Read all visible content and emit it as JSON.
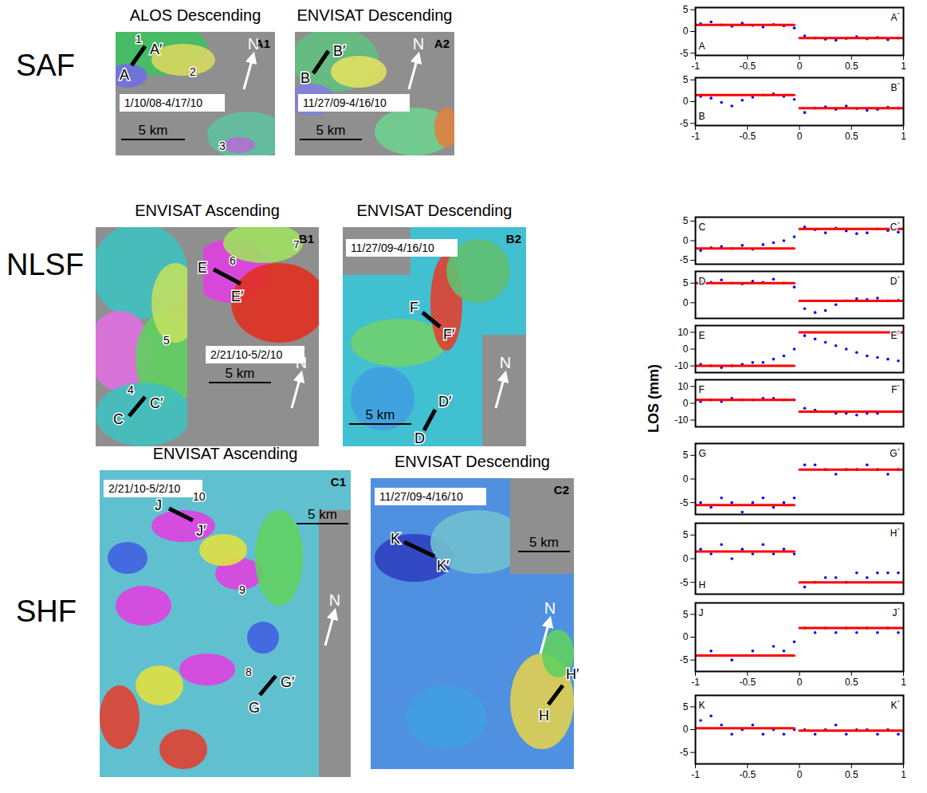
{
  "rows": [
    "SAF",
    "NLSF",
    "SHF"
  ],
  "y_label": "LOS (mm)",
  "maps": [
    {
      "id": "A1",
      "title": "ALOS Descending",
      "dates": "1/10/08-4/17/10",
      "scale": "5 km",
      "north": "N",
      "profiles": [
        [
          "A",
          "A′"
        ]
      ],
      "labels": [
        "1",
        "2",
        "3"
      ]
    },
    {
      "id": "A2",
      "title": "ENVISAT Descending",
      "dates": "11/27/09-4/16/10",
      "scale": "5 km",
      "north": "N",
      "profiles": [
        [
          "B",
          "B′"
        ]
      ]
    },
    {
      "id": "B1",
      "title": "ENVISAT Ascending",
      "dates": "2/21/10-5/2/10",
      "scale": "5 km",
      "north": "N",
      "profiles": [
        [
          "C",
          "C′"
        ],
        [
          "E",
          "E′"
        ]
      ],
      "labels": [
        "4",
        "5",
        "6",
        "7"
      ]
    },
    {
      "id": "B2",
      "title": "ENVISAT Descending",
      "dates": "11/27/09-4/16/10",
      "scale": "5 km",
      "north": "N",
      "profiles": [
        [
          "F",
          "F′"
        ],
        [
          "D",
          "D′"
        ]
      ]
    },
    {
      "id": "C1",
      "title": "ENVISAT Ascending",
      "dates": "2/21/10-5/2/10",
      "scale": "5 km",
      "north": "N",
      "profiles": [
        [
          "J",
          "J′"
        ],
        [
          "G",
          "G′"
        ]
      ],
      "labels": [
        "10",
        "9",
        "8"
      ]
    },
    {
      "id": "C2",
      "title": "ENVISAT Descending",
      "dates": "11/27/09-4/16/10",
      "scale": "5 km",
      "north": "N",
      "profiles": [
        [
          "K",
          "K′"
        ],
        [
          "H",
          "H′"
        ]
      ]
    }
  ],
  "chart_data": [
    {
      "type": "scatter",
      "annotations": [
        "A",
        "A`"
      ],
      "xlim": [
        -1,
        1
      ],
      "xticks": [
        -1,
        -0.5,
        0,
        0.5,
        1
      ],
      "ylim": [
        -5.5,
        5.5
      ],
      "yticks": [
        -5,
        0,
        5
      ],
      "series": [
        {
          "type": "scatter",
          "color": "blue",
          "x": [
            -0.95,
            -0.85,
            -0.75,
            -0.65,
            -0.55,
            -0.45,
            -0.35,
            -0.25,
            -0.15,
            -0.05,
            0.05,
            0.15,
            0.25,
            0.35,
            0.45,
            0.55,
            0.65,
            0.75,
            0.85,
            0.95
          ],
          "values": [
            1.8,
            2.2,
            1.5,
            1.2,
            1.9,
            1.4,
            1.0,
            1.6,
            1.3,
            0.8,
            -1.0,
            -1.5,
            -1.8,
            -2.0,
            -1.6,
            -1.2,
            -1.7,
            -1.4,
            -1.9,
            -1.5
          ]
        },
        {
          "type": "line",
          "color": "red",
          "x": [
            -1,
            -0.05,
            -0.02,
            0,
            1
          ],
          "values": [
            1.5,
            1.5,
            null,
            -1.5,
            -1.5
          ]
        }
      ]
    },
    {
      "type": "scatter",
      "annotations": [
        "B",
        "B`"
      ],
      "xlim": [
        -1,
        1
      ],
      "xticks": [
        -1,
        -0.5,
        0,
        0.5,
        1
      ],
      "ylim": [
        -5.5,
        5.5
      ],
      "yticks": [
        -5,
        0,
        5
      ],
      "series": [
        {
          "type": "scatter",
          "color": "blue",
          "x": [
            -0.95,
            -0.85,
            -0.75,
            -0.65,
            -0.55,
            -0.45,
            -0.35,
            -0.25,
            -0.15,
            -0.05,
            0.05,
            0.15,
            0.25,
            0.35,
            0.45,
            0.55,
            0.65,
            0.75,
            0.85,
            0.95
          ],
          "values": [
            1.2,
            0.8,
            -0.2,
            -1.0,
            0.3,
            1.0,
            1.5,
            1.8,
            1.2,
            0.5,
            -2.5,
            -1.5,
            -1.2,
            -1.8,
            -1.0,
            -1.6,
            -2.0,
            -1.8,
            -1.3,
            -1.5
          ]
        },
        {
          "type": "line",
          "color": "red",
          "x": [
            -1,
            -0.05,
            -0.02,
            0,
            1
          ],
          "values": [
            1.5,
            1.5,
            null,
            -1.5,
            -1.5
          ]
        }
      ]
    },
    {
      "type": "scatter",
      "annotations": [
        "C",
        "C`"
      ],
      "xlim": [
        -1,
        1
      ],
      "tick_labels": "y",
      "ylim": [
        -6,
        6
      ],
      "yticks": [
        -5,
        0,
        5
      ],
      "series": [
        {
          "type": "scatter",
          "color": "blue",
          "x": [
            -0.95,
            -0.85,
            -0.75,
            -0.65,
            -0.55,
            -0.45,
            -0.35,
            -0.25,
            -0.15,
            -0.05,
            0.05,
            0.15,
            0.25,
            0.35,
            0.45,
            0.55,
            0.65,
            0.75,
            0.85,
            0.95
          ],
          "values": [
            -2.5,
            -1.8,
            -1.5,
            -2.0,
            -1.2,
            -2.2,
            -1.0,
            -0.5,
            0,
            1.0,
            3.5,
            2.8,
            2.0,
            3.2,
            2.5,
            1.8,
            2.0,
            3.0,
            2.6,
            2.2
          ]
        },
        {
          "type": "line",
          "color": "red",
          "x": [
            -1,
            -0.05,
            -0.02,
            0,
            1
          ],
          "values": [
            -2,
            -2,
            null,
            3,
            3
          ]
        }
      ]
    },
    {
      "type": "scatter",
      "annotations": [
        "D",
        "D`"
      ],
      "xlim": [
        -1,
        1
      ],
      "tick_labels": "y",
      "ylim": [
        -4,
        8
      ],
      "yticks": [
        0,
        5
      ],
      "series": [
        {
          "type": "scatter",
          "color": "blue",
          "x": [
            -0.95,
            -0.85,
            -0.75,
            -0.65,
            -0.55,
            -0.45,
            -0.35,
            -0.25,
            -0.15,
            -0.05,
            0.05,
            0.15,
            0.25,
            0.35,
            0.45,
            0.55,
            0.65,
            0.75,
            0.85,
            0.95
          ],
          "values": [
            5.5,
            5.2,
            5.8,
            5.0,
            4.8,
            5.5,
            5.2,
            6.0,
            5.0,
            4.0,
            -1.5,
            -2.5,
            -2.0,
            -0.5,
            0.5,
            1.0,
            0.8,
            1.2,
            0.5,
            0.6
          ]
        },
        {
          "type": "line",
          "color": "red",
          "x": [
            -1,
            -0.05,
            -0.02,
            0,
            1
          ],
          "values": [
            5,
            5,
            null,
            0.5,
            0.5
          ]
        }
      ]
    },
    {
      "type": "scatter",
      "annotations": [
        "E",
        "E`"
      ],
      "xlim": [
        -1,
        1
      ],
      "tick_labels": "y",
      "ylim": [
        -14,
        14
      ],
      "yticks": [
        -10,
        0,
        10
      ],
      "series": [
        {
          "type": "scatter",
          "color": "blue",
          "x": [
            -0.95,
            -0.85,
            -0.75,
            -0.65,
            -0.55,
            -0.45,
            -0.35,
            -0.25,
            -0.15,
            -0.05,
            0.05,
            0.15,
            0.25,
            0.35,
            0.45,
            0.55,
            0.65,
            0.75,
            0.85,
            0.95
          ],
          "values": [
            -9,
            -10,
            -11,
            -10,
            -9,
            -8,
            -8,
            -6,
            -4,
            0,
            8,
            6,
            4,
            2,
            0,
            -2,
            -4,
            -5,
            -6,
            -7
          ]
        },
        {
          "type": "line",
          "color": "red",
          "x": [
            -1,
            -0.05,
            -0.02,
            0,
            1
          ],
          "values": [
            -10,
            -10,
            null,
            10,
            10
          ]
        }
      ]
    },
    {
      "type": "scatter",
      "annotations": [
        "F",
        "F`"
      ],
      "xlim": [
        -1,
        1
      ],
      "tick_labels": "y",
      "ylim": [
        -14,
        14
      ],
      "yticks": [
        -10,
        0,
        10
      ],
      "series": [
        {
          "type": "scatter",
          "color": "blue",
          "x": [
            -0.95,
            -0.85,
            -0.75,
            -0.65,
            -0.55,
            -0.45,
            -0.35,
            -0.25,
            -0.15,
            -0.05,
            0.05,
            0.15,
            0.25,
            0.35,
            0.45,
            0.55,
            0.65,
            0.75,
            0.85,
            0.95
          ],
          "values": [
            1,
            2,
            1,
            3,
            2,
            2,
            3,
            3,
            2,
            2,
            -3,
            -4,
            -5,
            -6,
            -6,
            -7,
            -6,
            -6,
            -5,
            -5
          ]
        },
        {
          "type": "line",
          "color": "red",
          "x": [
            -1,
            -0.05,
            -0.02,
            0,
            1
          ],
          "values": [
            2,
            2,
            null,
            -5,
            -5
          ]
        }
      ]
    },
    {
      "type": "scatter",
      "annotations": [
        "G",
        "G`"
      ],
      "xlim": [
        -1,
        1
      ],
      "tick_labels": "y",
      "ylim": [
        -7.5,
        7.5
      ],
      "yticks": [
        -5,
        0,
        5
      ],
      "series": [
        {
          "type": "scatter",
          "color": "blue",
          "x": [
            -0.95,
            -0.85,
            -0.75,
            -0.65,
            -0.55,
            -0.45,
            -0.35,
            -0.25,
            -0.15,
            -0.05,
            0.05,
            0.15,
            0.25,
            0.35,
            0.45,
            0.55,
            0.65,
            0.75,
            0.85,
            0.95
          ],
          "values": [
            -5,
            -6,
            -4,
            -5,
            -7,
            -5,
            -4,
            -6,
            -5,
            -4,
            3,
            3,
            2,
            1,
            2,
            2,
            3,
            2,
            1,
            2
          ]
        },
        {
          "type": "line",
          "color": "red",
          "x": [
            -1,
            -0.05,
            -0.02,
            0,
            1
          ],
          "values": [
            -5.5,
            -5.5,
            null,
            2,
            2
          ]
        }
      ]
    },
    {
      "type": "scatter",
      "annotations": [
        "H",
        "H`"
      ],
      "xlim": [
        -1,
        1
      ],
      "tick_labels": "y",
      "ylim": [
        -7.5,
        7.5
      ],
      "yticks": [
        -5,
        0,
        5
      ],
      "series": [
        {
          "type": "scatter",
          "color": "blue",
          "x": [
            -0.95,
            -0.85,
            -0.75,
            -0.65,
            -0.55,
            -0.45,
            -0.35,
            -0.25,
            -0.15,
            -0.05,
            0.05,
            0.15,
            0.25,
            0.35,
            0.45,
            0.55,
            0.65,
            0.75,
            0.85,
            0.95
          ],
          "values": [
            2,
            1,
            3,
            0,
            2,
            1,
            3,
            1,
            2,
            1,
            -6,
            -5,
            -4,
            -4,
            -5,
            -3,
            -4,
            -3,
            -3,
            -3
          ]
        },
        {
          "type": "line",
          "color": "red",
          "x": [
            -1,
            -0.05,
            -0.02,
            0,
            1
          ],
          "values": [
            1.5,
            1.5,
            null,
            -5,
            -5
          ]
        }
      ]
    },
    {
      "type": "scatter",
      "annotations": [
        "J",
        "J`"
      ],
      "xlim": [
        -1,
        1
      ],
      "xticks": [
        -1,
        -0.5,
        0,
        0.5,
        1
      ],
      "ylim": [
        -7.5,
        7.5
      ],
      "yticks": [
        -5,
        0,
        5
      ],
      "series": [
        {
          "type": "scatter",
          "color": "blue",
          "x": [
            -0.95,
            -0.85,
            -0.75,
            -0.65,
            -0.55,
            -0.45,
            -0.35,
            -0.25,
            -0.15,
            -0.05,
            0.05,
            0.15,
            0.25,
            0.35,
            0.45,
            0.55,
            0.65,
            0.75,
            0.85,
            0.95
          ],
          "values": [
            -4,
            -3,
            -4,
            -5,
            -4,
            -3,
            -4,
            -2,
            -3,
            -1,
            2,
            1,
            2,
            1,
            2,
            1,
            2,
            1,
            2,
            1
          ]
        },
        {
          "type": "line",
          "color": "red",
          "x": [
            -1,
            -0.05,
            -0.02,
            0,
            1
          ],
          "values": [
            -4,
            -4,
            null,
            2,
            2
          ]
        }
      ]
    },
    {
      "type": "scatter",
      "annotations": [
        "K",
        "K`"
      ],
      "xlim": [
        -1,
        1
      ],
      "xticks": [
        -1,
        -0.5,
        0,
        0.5,
        1
      ],
      "ylim": [
        -7.5,
        7.5
      ],
      "yticks": [
        -5,
        0,
        5
      ],
      "series": [
        {
          "type": "scatter",
          "color": "blue",
          "x": [
            -0.95,
            -0.85,
            -0.75,
            -0.65,
            -0.55,
            -0.45,
            -0.35,
            -0.25,
            -0.15,
            -0.05,
            0.05,
            0.15,
            0.25,
            0.35,
            0.45,
            0.55,
            0.65,
            0.75,
            0.85,
            0.95
          ],
          "values": [
            2,
            3,
            1,
            -1,
            0,
            1,
            -1,
            0,
            -1,
            0,
            0,
            -1,
            0,
            1,
            -1,
            0,
            0,
            -1,
            0,
            -1
          ]
        },
        {
          "type": "line",
          "color": "red",
          "x": [
            -1,
            -0.05,
            -0.02,
            0,
            1
          ],
          "values": [
            0.3,
            0.3,
            null,
            -0.2,
            -0.2
          ]
        }
      ]
    }
  ]
}
